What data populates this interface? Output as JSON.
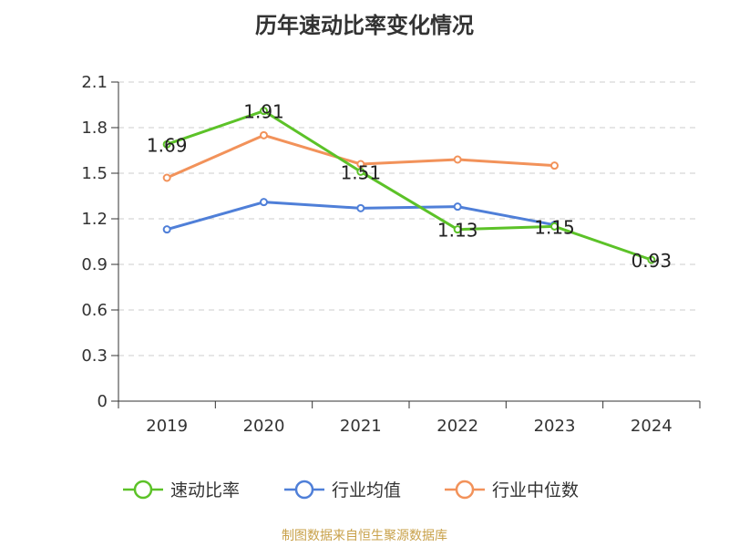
{
  "title": "历年速动比率变化情况",
  "source": "制图数据来自恒生聚源数据库",
  "chart_data": {
    "type": "line",
    "categories": [
      "2019",
      "2020",
      "2021",
      "2022",
      "2023",
      "2024"
    ],
    "ylim": [
      0,
      2.1
    ],
    "yticks": [
      "0",
      "0.3",
      "0.6",
      "0.9",
      "1.2",
      "1.5",
      "1.8",
      "2.1"
    ],
    "grid": true,
    "legend_position": "bottom",
    "series": [
      {
        "name": "速动比率",
        "color": "#5cc228",
        "values": [
          1.69,
          1.91,
          1.51,
          1.13,
          1.15,
          0.93
        ],
        "labels": [
          "1.69",
          "1.91",
          "1.51",
          "1.13",
          "1.15",
          "0.93"
        ]
      },
      {
        "name": "行业均值",
        "color": "#4f7fd8",
        "values": [
          1.13,
          1.31,
          1.27,
          1.28,
          1.16,
          null
        ]
      },
      {
        "name": "行业中位数",
        "color": "#f2925a",
        "values": [
          1.47,
          1.75,
          1.56,
          1.59,
          1.55,
          null
        ]
      }
    ]
  }
}
